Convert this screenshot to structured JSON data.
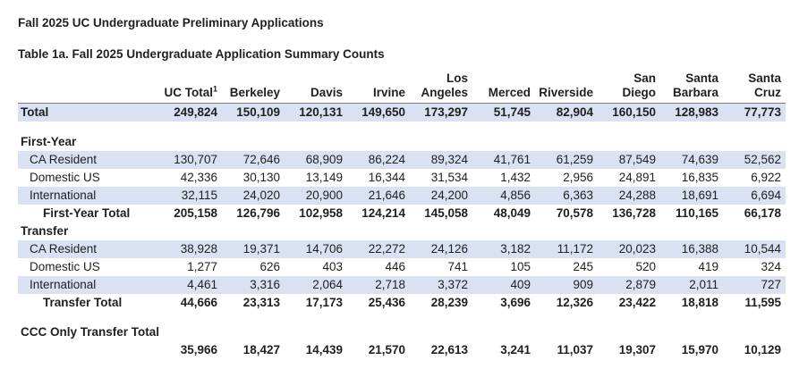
{
  "page": {
    "title": "Fall 2025 UC Undergraduate Preliminary Applications",
    "subtitle": "Table 1a. Fall 2025 Undergraduate Application Summary Counts"
  },
  "colors": {
    "row_shade": "#D9E1F2",
    "header_rule": "#7f7f7f",
    "text": "#1f1f1f"
  },
  "table": {
    "columns": [
      {
        "lines": [
          "UC Total"
        ],
        "sup": "1"
      },
      {
        "lines": [
          "Berkeley"
        ]
      },
      {
        "lines": [
          "Davis"
        ]
      },
      {
        "lines": [
          "Irvine"
        ]
      },
      {
        "lines": [
          "Los",
          "Angeles"
        ]
      },
      {
        "lines": [
          "Merced"
        ]
      },
      {
        "lines": [
          "Riverside"
        ]
      },
      {
        "lines": [
          "San",
          "Diego"
        ]
      },
      {
        "lines": [
          "Santa",
          "Barbara"
        ]
      },
      {
        "lines": [
          "Santa",
          "Cruz"
        ]
      }
    ],
    "rows": [
      {
        "kind": "grand-total",
        "label": "Total",
        "bold": true,
        "shaded": true,
        "indent": 0,
        "values": [
          "249,824",
          "150,109",
          "120,131",
          "149,650",
          "173,297",
          "51,745",
          "82,904",
          "160,150",
          "128,983",
          "77,773"
        ]
      },
      {
        "kind": "spacer"
      },
      {
        "kind": "section",
        "label": "First-Year",
        "bold": true,
        "shaded": false,
        "indent": 0,
        "values": null
      },
      {
        "kind": "data",
        "label": "CA Resident",
        "bold": false,
        "shaded": true,
        "indent": 1,
        "values": [
          "130,707",
          "72,646",
          "68,909",
          "86,224",
          "89,324",
          "41,761",
          "61,259",
          "87,549",
          "74,639",
          "52,562"
        ]
      },
      {
        "kind": "data",
        "label": "Domestic US",
        "bold": false,
        "shaded": false,
        "indent": 1,
        "values": [
          "42,336",
          "30,130",
          "13,149",
          "16,344",
          "31,534",
          "1,432",
          "2,956",
          "24,891",
          "16,835",
          "6,922"
        ]
      },
      {
        "kind": "data",
        "label": "International",
        "bold": false,
        "shaded": true,
        "indent": 1,
        "values": [
          "32,115",
          "24,020",
          "20,900",
          "21,646",
          "24,200",
          "4,856",
          "6,363",
          "24,288",
          "18,691",
          "6,694"
        ]
      },
      {
        "kind": "subtotal",
        "label": "First-Year Total",
        "bold": true,
        "shaded": false,
        "indent": 2,
        "values": [
          "205,158",
          "126,796",
          "102,958",
          "124,214",
          "145,058",
          "48,049",
          "70,578",
          "136,728",
          "110,165",
          "66,178"
        ]
      },
      {
        "kind": "section",
        "label": "Transfer",
        "bold": true,
        "shaded": false,
        "indent": 0,
        "values": null
      },
      {
        "kind": "data",
        "label": "CA Resident",
        "bold": false,
        "shaded": true,
        "indent": 1,
        "values": [
          "38,928",
          "19,371",
          "14,706",
          "22,272",
          "24,126",
          "3,182",
          "11,172",
          "20,023",
          "16,388",
          "10,544"
        ]
      },
      {
        "kind": "data",
        "label": "Domestic US",
        "bold": false,
        "shaded": false,
        "indent": 1,
        "values": [
          "1,277",
          "626",
          "403",
          "446",
          "741",
          "105",
          "245",
          "520",
          "419",
          "324"
        ]
      },
      {
        "kind": "data",
        "label": "International",
        "bold": false,
        "shaded": true,
        "indent": 1,
        "values": [
          "4,461",
          "3,316",
          "2,064",
          "2,718",
          "3,372",
          "409",
          "909",
          "2,879",
          "2,011",
          "727"
        ]
      },
      {
        "kind": "subtotal",
        "label": "Transfer Total",
        "bold": true,
        "shaded": false,
        "indent": 2,
        "values": [
          "44,666",
          "23,313",
          "17,173",
          "25,436",
          "28,239",
          "3,696",
          "12,326",
          "23,422",
          "18,818",
          "11,595"
        ]
      },
      {
        "kind": "spacer"
      },
      {
        "kind": "section",
        "label": "CCC Only Transfer Total",
        "bold": true,
        "shaded": false,
        "indent": 0,
        "values": null
      },
      {
        "kind": "values-only",
        "label": "",
        "bold": true,
        "shaded": false,
        "indent": 0,
        "values": [
          "35,966",
          "18,427",
          "14,439",
          "21,570",
          "22,613",
          "3,241",
          "11,037",
          "19,307",
          "15,970",
          "10,129"
        ]
      }
    ]
  }
}
